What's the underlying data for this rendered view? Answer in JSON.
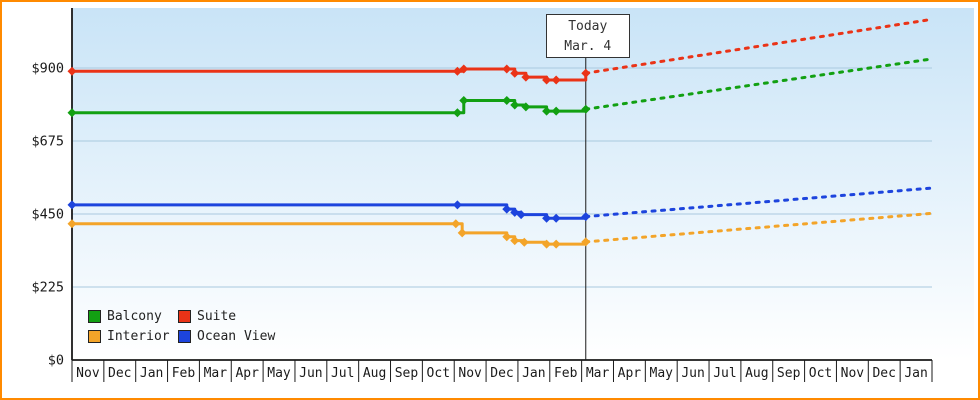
{
  "page": {
    "background_top": "#c9e4f7",
    "background_bottom": "#ffffff",
    "border_color": "#ff8a00",
    "axis_color": "#1a1a1a",
    "gridline_color": "#a9c9df",
    "text_color": "#1a1a1a"
  },
  "today_marker": {
    "line1": "Today",
    "line2": "Mar. 4"
  },
  "legend": {
    "items": [
      {
        "label": "Balcony",
        "color": "#12a012"
      },
      {
        "label": "Suite",
        "color": "#ea3317"
      },
      {
        "label": "Interior",
        "color": "#f3a429"
      },
      {
        "label": "Ocean View",
        "color": "#1d44dd"
      }
    ]
  },
  "chart_data": {
    "type": "line",
    "title": "",
    "xlabel": "",
    "ylabel": "",
    "x_labels": [
      "Nov",
      "Dec",
      "Jan",
      "Feb",
      "Mar",
      "Apr",
      "May",
      "Jun",
      "Jul",
      "Aug",
      "Sep",
      "Oct",
      "Nov",
      "Dec",
      "Jan",
      "Feb",
      "Mar",
      "Apr",
      "May",
      "Jun",
      "Jul",
      "Aug",
      "Sep",
      "Oct",
      "Nov",
      "Dec",
      "Jan"
    ],
    "y_ticks": [
      0,
      225,
      450,
      675,
      900
    ],
    "y_tick_labels": [
      "$0",
      "$225",
      "$450",
      "$675",
      "$900"
    ],
    "ylim": [
      0,
      1075
    ],
    "grid": "horizontal",
    "legend_position": "bottom-left",
    "today_x": 16.13,
    "series": [
      {
        "name": "Suite",
        "color": "#ea3317",
        "history": [
          [
            0,
            890
          ],
          [
            12.1,
            890
          ],
          [
            12.3,
            897
          ],
          [
            13.65,
            897
          ],
          [
            13.9,
            884
          ],
          [
            14.25,
            872
          ],
          [
            14.9,
            863
          ],
          [
            15.2,
            863
          ],
          [
            16.13,
            884
          ]
        ],
        "forecast": [
          [
            16.13,
            884
          ],
          [
            27,
            1050
          ]
        ]
      },
      {
        "name": "Balcony",
        "color": "#12a012",
        "history": [
          [
            0,
            762
          ],
          [
            12.1,
            762
          ],
          [
            12.3,
            800
          ],
          [
            13.65,
            800
          ],
          [
            13.9,
            786
          ],
          [
            14.25,
            780
          ],
          [
            14.9,
            767
          ],
          [
            15.2,
            767
          ],
          [
            16.13,
            773
          ]
        ],
        "forecast": [
          [
            16.13,
            773
          ],
          [
            27,
            928
          ]
        ]
      },
      {
        "name": "Ocean View",
        "color": "#1d44dd",
        "history": [
          [
            0,
            478
          ],
          [
            12.1,
            478
          ],
          [
            13.65,
            465
          ],
          [
            13.9,
            455
          ],
          [
            14.1,
            448
          ],
          [
            14.9,
            437
          ],
          [
            15.2,
            437
          ],
          [
            16.13,
            442
          ]
        ],
        "forecast": [
          [
            16.13,
            442
          ],
          [
            27,
            530
          ]
        ]
      },
      {
        "name": "Interior",
        "color": "#f3a429",
        "history": [
          [
            0,
            420
          ],
          [
            12.05,
            420
          ],
          [
            12.25,
            392
          ],
          [
            13.65,
            380
          ],
          [
            13.9,
            368
          ],
          [
            14.2,
            363
          ],
          [
            14.9,
            357
          ],
          [
            15.2,
            357
          ],
          [
            16.13,
            364
          ]
        ],
        "forecast": [
          [
            16.13,
            364
          ],
          [
            27,
            452
          ]
        ]
      }
    ]
  }
}
